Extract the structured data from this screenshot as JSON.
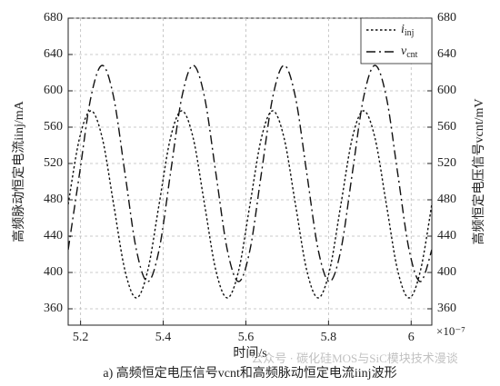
{
  "chart_data": {
    "type": "line",
    "x_label": "时间/s",
    "y_label": "高频脉动恒定电流iinj/mA",
    "y2_label": "高频恒定电压信号vcnt/mV",
    "x_exponent": "×10⁻⁷",
    "caption": "a) 高频恒定电压信号vcnt和高频脉动恒定电流iinj波形",
    "watermark": "公众号 · 碳化硅MOS与SiC模块技术漫谈",
    "x": [
      5.17,
      5.1975,
      5.225,
      5.2525,
      5.28,
      5.3075,
      5.335,
      5.3625,
      5.39,
      5.4175,
      5.445,
      5.4725,
      5.5,
      5.5275,
      5.555,
      5.5825,
      5.61,
      5.6375,
      5.665,
      5.6925,
      5.72,
      5.7475,
      5.775,
      5.8025,
      5.83,
      5.8575,
      5.885,
      5.9125,
      5.94,
      5.9675,
      5.995,
      6.0225,
      6.05
    ],
    "series": [
      {
        "name": "iinj",
        "color": "#111111",
        "dash": "dotted",
        "values": [
          475,
          548,
          578,
          548,
          475,
          402,
          372,
          402,
          475,
          548,
          578,
          548,
          475,
          402,
          372,
          402,
          475,
          548,
          578,
          548,
          475,
          402,
          372,
          402,
          475,
          548,
          578,
          548,
          475,
          402,
          372,
          402,
          475
        ]
      },
      {
        "name": "vcnt",
        "color": "#111111",
        "dash": "dashdot",
        "axis": "y2",
        "values": [
          425,
          509,
          593,
          628,
          593,
          509,
          425,
          390,
          425,
          509,
          593,
          628,
          593,
          509,
          425,
          390,
          425,
          509,
          593,
          628,
          593,
          509,
          425,
          390,
          425,
          509,
          593,
          628,
          593,
          509,
          425,
          390,
          425
        ]
      }
    ],
    "xlim": [
      5.17,
      6.05
    ],
    "xticks": [
      5.2,
      5.4,
      5.6,
      5.8,
      6.0
    ],
    "ylim": [
      342,
      680
    ],
    "yticks": [
      360,
      400,
      440,
      480,
      520,
      560,
      600,
      640,
      680
    ],
    "y2lim": [
      342,
      680
    ],
    "y2ticks": [
      360,
      400,
      440,
      480,
      520,
      560,
      600,
      640,
      680
    ],
    "grid": true,
    "legend": "upper right"
  }
}
